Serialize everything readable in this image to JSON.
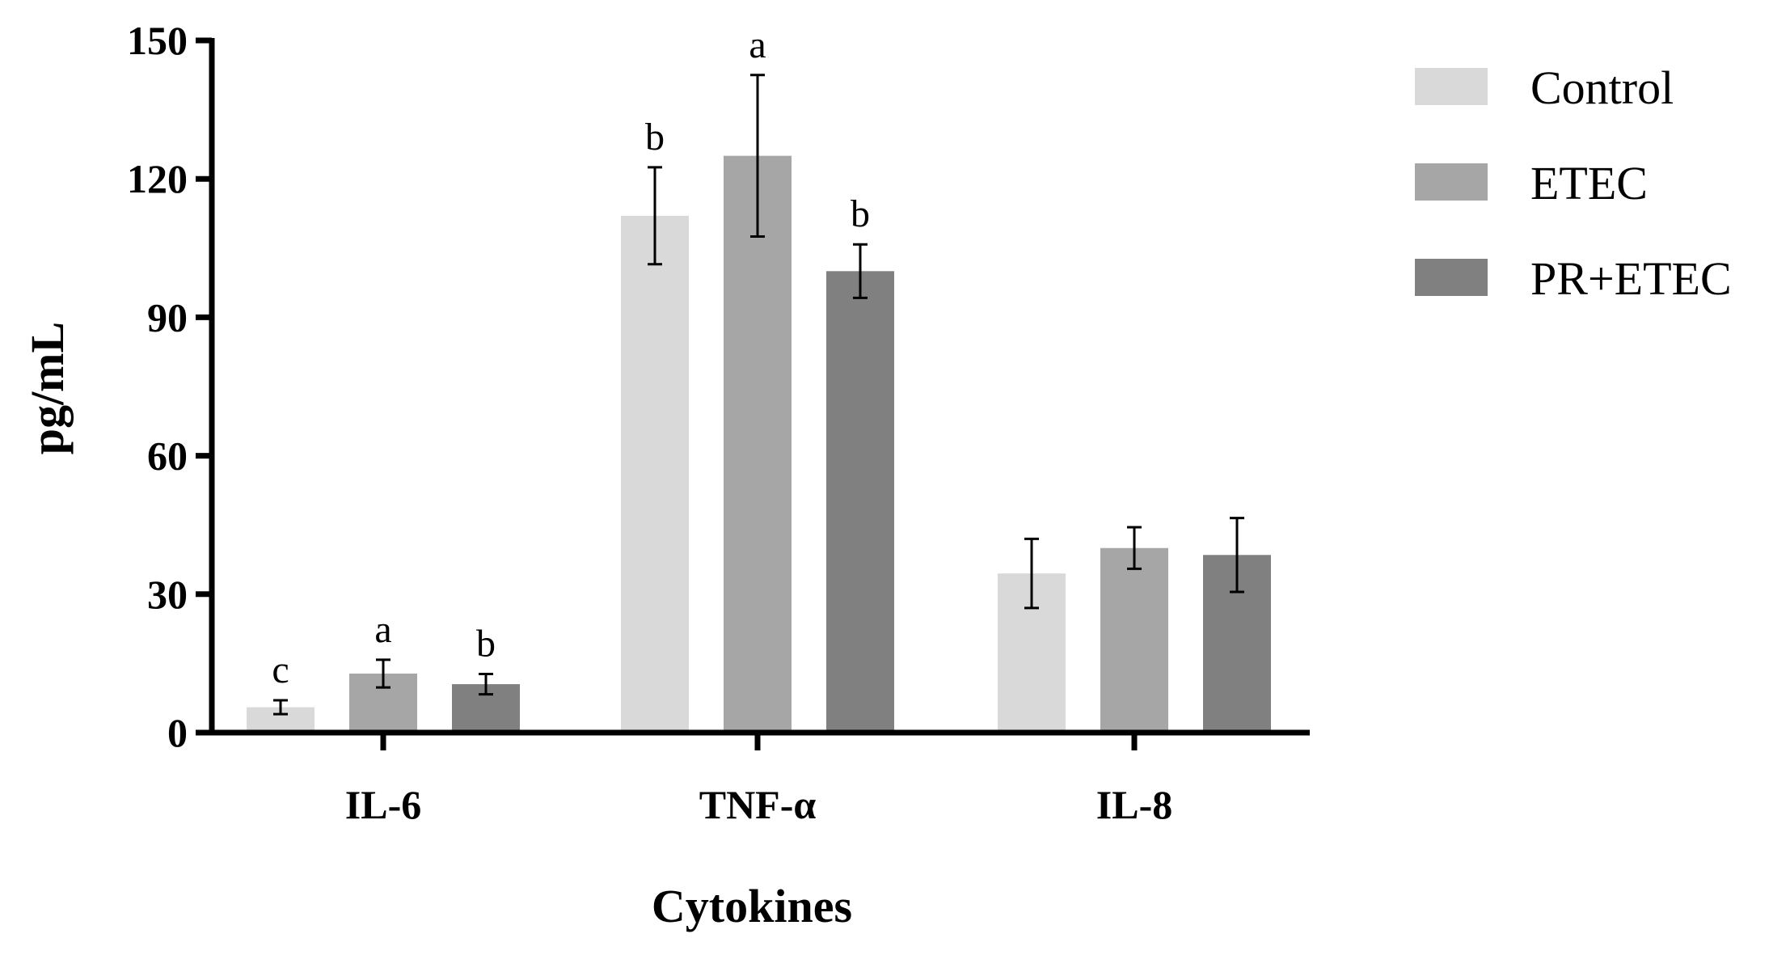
{
  "chart_data": {
    "type": "bar",
    "xlabel": "Cytokines",
    "ylabel": "pg/mL",
    "ylim": [
      0,
      150
    ],
    "yticks": [
      0,
      30,
      60,
      90,
      120,
      150
    ],
    "categories": [
      "IL-6",
      "TNF-α",
      "IL-8"
    ],
    "series": [
      {
        "name": "Control",
        "color": "#d9d9d9",
        "values": [
          5.5,
          112,
          34.5
        ],
        "errors": [
          1.5,
          10.5,
          7.5
        ],
        "sig": [
          "c",
          "b",
          ""
        ]
      },
      {
        "name": "ETEC",
        "color": "#a6a6a6",
        "values": [
          12.8,
          125,
          40
        ],
        "errors": [
          3,
          17.5,
          4.5
        ],
        "sig": [
          "a",
          "a",
          ""
        ]
      },
      {
        "name": "PR+ETEC",
        "color": "#808080",
        "values": [
          10.5,
          100,
          38.5
        ],
        "errors": [
          2.2,
          5.8,
          8
        ],
        "sig": [
          "b",
          "b",
          ""
        ]
      }
    ],
    "legend": "right",
    "grid": false
  }
}
